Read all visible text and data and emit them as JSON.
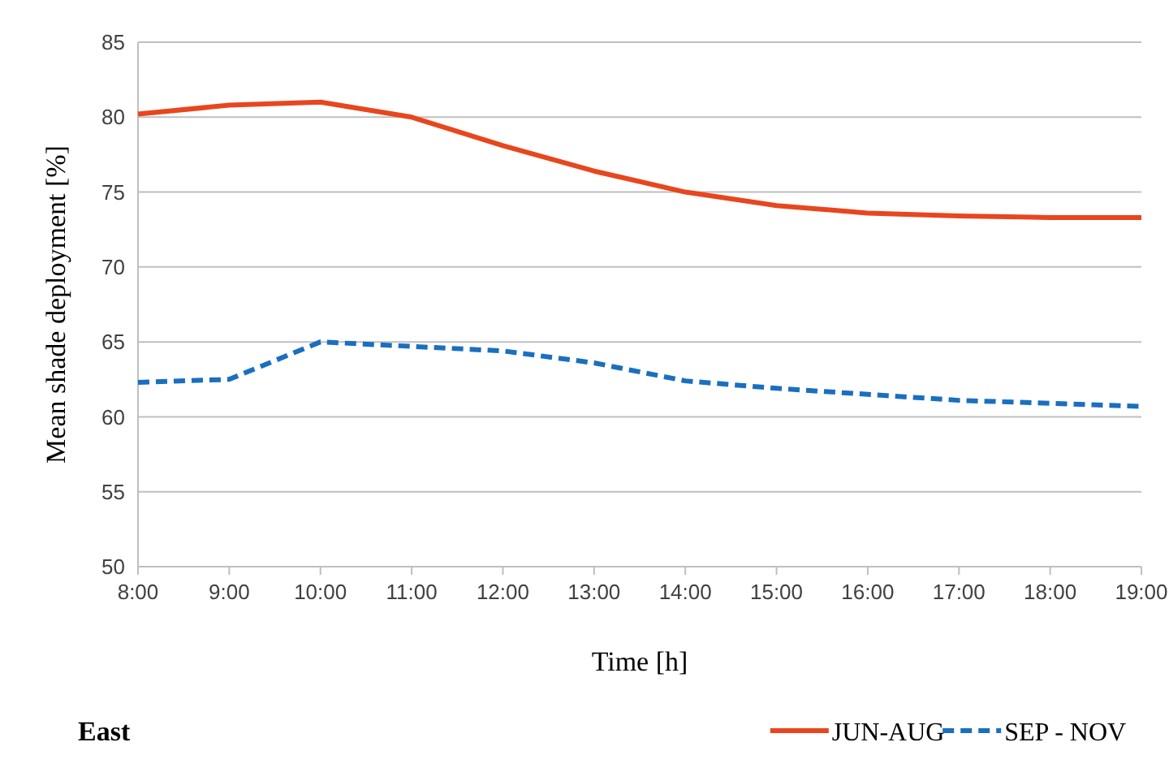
{
  "chart_data": {
    "type": "line",
    "title": "East",
    "xlabel": "Time [h]",
    "ylabel": "Mean shade deployment  [%]",
    "categories": [
      "8:00",
      "9:00",
      "10:00",
      "11:00",
      "12:00",
      "13:00",
      "14:00",
      "15:00",
      "16:00",
      "17:00",
      "18:00",
      "19:00"
    ],
    "series": [
      {
        "name": "JUN-AUG",
        "color": "#e8461e",
        "line_style": "solid",
        "values": [
          80.2,
          80.8,
          81.0,
          80.0,
          78.1,
          76.4,
          75.0,
          74.1,
          73.6,
          73.4,
          73.3,
          73.3
        ]
      },
      {
        "name": "SEP - NOV",
        "color": "#1a6fbf",
        "line_style": "dashed",
        "values": [
          62.3,
          62.5,
          65.0,
          64.7,
          64.4,
          63.6,
          62.4,
          61.9,
          61.5,
          61.1,
          60.9,
          60.7
        ]
      }
    ],
    "ylim": [
      50,
      85
    ],
    "yticks": [
      50,
      55,
      60,
      65,
      70,
      75,
      80,
      85
    ],
    "grid": "y",
    "legend": "bottom right"
  }
}
